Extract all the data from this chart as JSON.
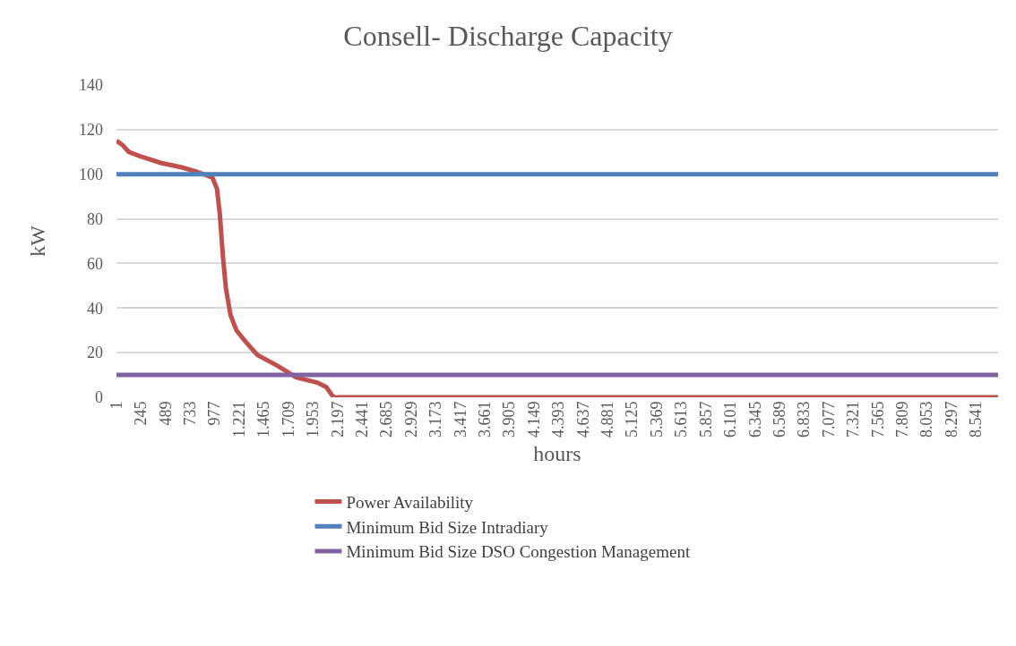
{
  "chart_data": {
    "type": "line",
    "title": "Consell- Discharge Capacity",
    "xlabel": "hours",
    "ylabel": "kW",
    "xlim": [
      1,
      8760
    ],
    "ylim": [
      0,
      140
    ],
    "yticks": [
      0,
      20,
      40,
      60,
      80,
      100,
      120,
      140
    ],
    "xticks": [
      1,
      245,
      489,
      733,
      977,
      {
        "value": 1221,
        "label": "1.221"
      },
      {
        "value": 1465,
        "label": "1.465"
      },
      {
        "value": 1709,
        "label": "1.709"
      },
      {
        "value": 1953,
        "label": "1.953"
      },
      {
        "value": 2197,
        "label": "2.197"
      },
      {
        "value": 2441,
        "label": "2.441"
      },
      {
        "value": 2685,
        "label": "2.685"
      },
      {
        "value": 2929,
        "label": "2.929"
      },
      {
        "value": 3173,
        "label": "3.173"
      },
      {
        "value": 3417,
        "label": "3.417"
      },
      {
        "value": 3661,
        "label": "3.661"
      },
      {
        "value": 3905,
        "label": "3.905"
      },
      {
        "value": 4149,
        "label": "4.149"
      },
      {
        "value": 4393,
        "label": "4.393"
      },
      {
        "value": 4637,
        "label": "4.637"
      },
      {
        "value": 4881,
        "label": "4.881"
      },
      {
        "value": 5125,
        "label": "5.125"
      },
      {
        "value": 5369,
        "label": "5.369"
      },
      {
        "value": 5613,
        "label": "5.613"
      },
      {
        "value": 5857,
        "label": "5.857"
      },
      {
        "value": 6101,
        "label": "6.101"
      },
      {
        "value": 6345,
        "label": "6.345"
      },
      {
        "value": 6589,
        "label": "6.589"
      },
      {
        "value": 6833,
        "label": "6.833"
      },
      {
        "value": 7077,
        "label": "7.077"
      },
      {
        "value": 7321,
        "label": "7.321"
      },
      {
        "value": 7565,
        "label": "7.565"
      },
      {
        "value": 7809,
        "label": "7.809"
      },
      {
        "value": 8053,
        "label": "8.053"
      },
      {
        "value": 8297,
        "label": "8.297"
      },
      {
        "value": 8541,
        "label": "8.541"
      }
    ],
    "grid": "y",
    "legend": "bottom",
    "marker": "none",
    "line_style": "solid",
    "series": [
      {
        "name": "Power Availability",
        "color": "#c0504d",
        "x": [
          1,
          63,
          123,
          242,
          447,
          658,
          803,
          892,
          955,
          999,
          1026,
          1059,
          1088,
          1133,
          1193,
          1282,
          1401,
          1606,
          1784,
          1995,
          2084,
          2158,
          8760
        ],
        "values": [
          115,
          113,
          110,
          108,
          105,
          103,
          101,
          99.6,
          98.4,
          93.5,
          83,
          63,
          49,
          37,
          30,
          25,
          19,
          14,
          9,
          6.6,
          4.6,
          0,
          0
        ]
      },
      {
        "name": "Minimum Bid Size Intradiary",
        "color": "#4f81bd",
        "x": [
          1,
          8760
        ],
        "values": [
          100,
          100
        ]
      },
      {
        "name": "Minimum Bid Size DSO Congestion Management",
        "color": "#8064a2",
        "x": [
          1,
          8760
        ],
        "values": [
          10,
          10
        ]
      }
    ]
  }
}
